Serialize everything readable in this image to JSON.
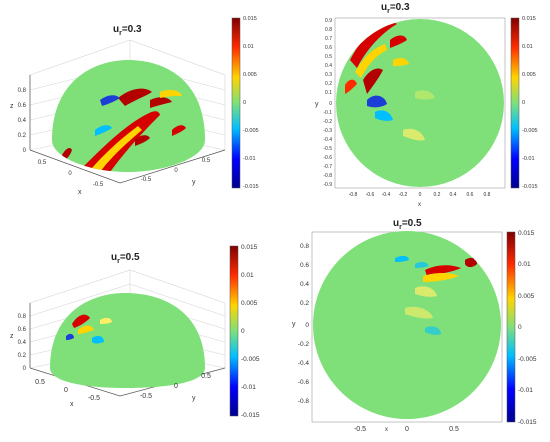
{
  "chart_data": [
    {
      "type": "heatmap",
      "view": "3d-hemisphere",
      "title": "u_r=0.3",
      "title_main": "u",
      "title_sub": "r",
      "title_value": "=0.3",
      "xlabel": "x",
      "ylabel": "y",
      "zlabel": "z",
      "x_ticks": [
        "0.5",
        "0",
        "-0.5"
      ],
      "y_ticks": [
        "-0.5",
        "0",
        "0.5"
      ],
      "z_ticks": [
        "0",
        "0.2",
        "0.4",
        "0.6",
        "0.8"
      ],
      "colorbar": {
        "min": -0.015,
        "max": 0.015,
        "ticks": [
          "0.015",
          "0.01",
          "0.005",
          "0",
          "-0.005",
          "-0.01",
          "-0.015"
        ]
      }
    },
    {
      "type": "heatmap",
      "view": "2d-top",
      "title": "u_r=0.3",
      "title_main": "u",
      "title_sub": "r",
      "title_value": "=0.3",
      "xlabel": "x",
      "ylabel": "y",
      "xlim": [
        -1,
        1
      ],
      "ylim": [
        -1,
        1
      ],
      "x_ticks": [
        "-0.8",
        "-0.6",
        "-0.4",
        "-0.2",
        "0",
        "0.2",
        "0.4",
        "0.6",
        "0.8"
      ],
      "y_ticks": [
        "0.9",
        "0.8",
        "0.7",
        "0.6",
        "0.5",
        "0.4",
        "0.3",
        "0.2",
        "0.1",
        "0",
        "-0.1",
        "-0.2",
        "-0.3",
        "-0.4",
        "-0.5",
        "-0.6",
        "-0.7",
        "-0.8",
        "-0.9"
      ],
      "colorbar": {
        "min": -0.015,
        "max": 0.015,
        "ticks": [
          "0.015",
          "0.01",
          "0.005",
          "0",
          "-0.005",
          "-0.01",
          "-0.015"
        ]
      }
    },
    {
      "type": "heatmap",
      "view": "3d-hemisphere",
      "title": "u_r=0.5",
      "title_main": "u",
      "title_sub": "r",
      "title_value": "=0.5",
      "xlabel": "x",
      "ylabel": "y",
      "zlabel": "z",
      "x_ticks": [
        "0.5",
        "0",
        "-0.5"
      ],
      "y_ticks": [
        "-0.5",
        "0",
        "0.5"
      ],
      "z_ticks": [
        "0",
        "0.2",
        "0.4",
        "0.6",
        "0.8"
      ],
      "colorbar": {
        "min": -0.015,
        "max": 0.015,
        "ticks": [
          "0.015",
          "0.01",
          "0.005",
          "0",
          "-0.005",
          "-0.01",
          "-0.015"
        ]
      }
    },
    {
      "type": "heatmap",
      "view": "2d-top",
      "title": "u_r=0.5",
      "title_main": "u",
      "title_sub": "r",
      "title_value": "=0.5",
      "xlabel": "x",
      "ylabel": "y",
      "xlim": [
        -1,
        1
      ],
      "ylim": [
        -1,
        1
      ],
      "x_ticks": [
        "-0.5",
        "0",
        "0.5"
      ],
      "y_ticks": [
        "0.8",
        "0.6",
        "0.4",
        "0.2",
        "0",
        "-0.2",
        "-0.4",
        "-0.6",
        "-0.8"
      ],
      "colorbar": {
        "min": -0.015,
        "max": 0.015,
        "ticks": [
          "0.015",
          "0.01",
          "0.005",
          "0",
          "-0.005",
          "-0.01",
          "-0.015"
        ]
      }
    }
  ],
  "colors": {
    "background_field": "#7fe07a",
    "positive": "#b30000",
    "negative": "#1b3fd6",
    "colormap": [
      "#00008f",
      "#0000ff",
      "#00bfff",
      "#7fe07a",
      "#ffd400",
      "#ff2a00",
      "#800000"
    ]
  }
}
